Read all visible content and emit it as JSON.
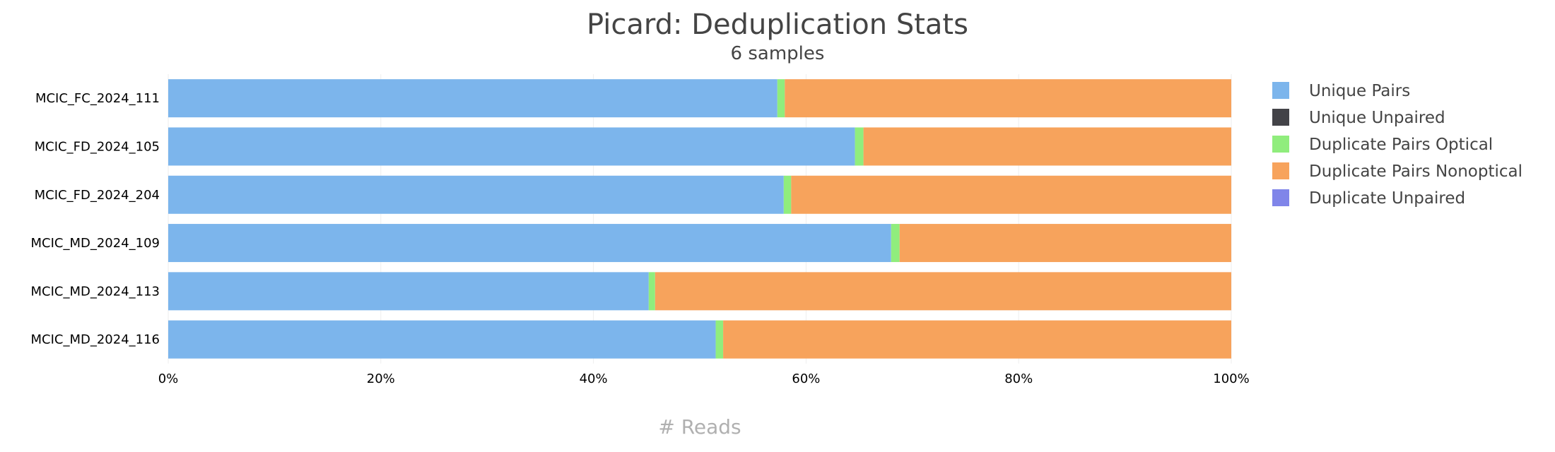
{
  "chart_data": {
    "type": "bar",
    "orientation": "horizontal",
    "stacked": "percent",
    "title": "Picard: Deduplication Stats",
    "subtitle": "6 samples",
    "xlabel": "# Reads",
    "ylabel": "",
    "xlim": [
      0,
      100
    ],
    "x_ticks": [
      "0%",
      "20%",
      "40%",
      "60%",
      "80%",
      "100%"
    ],
    "grid": true,
    "legend_position": "right",
    "categories": [
      "MCIC_FC_2024_111",
      "MCIC_FD_2024_105",
      "MCIC_FD_2024_204",
      "MCIC_MD_2024_109",
      "MCIC_MD_2024_113",
      "MCIC_MD_2024_116"
    ],
    "series": [
      {
        "name": "Unique Pairs",
        "color": "#7cb5ec",
        "values": [
          57.3,
          64.6,
          57.9,
          68.0,
          45.2,
          51.5
        ]
      },
      {
        "name": "Unique Unpaired",
        "color": "#434348",
        "values": [
          0,
          0,
          0,
          0,
          0,
          0
        ]
      },
      {
        "name": "Duplicate Pairs Optical",
        "color": "#90ed7d",
        "values": [
          0.7,
          0.8,
          0.7,
          0.8,
          0.6,
          0.7
        ]
      },
      {
        "name": "Duplicate Pairs Nonoptical",
        "color": "#f7a35c",
        "values": [
          42.0,
          34.6,
          41.4,
          31.2,
          54.2,
          47.8
        ]
      },
      {
        "name": "Duplicate Unpaired",
        "color": "#8085e9",
        "values": [
          0,
          0,
          0,
          0,
          0,
          0
        ]
      }
    ]
  }
}
